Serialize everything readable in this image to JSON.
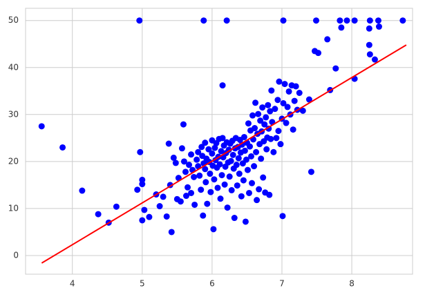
{
  "chart_data": {
    "type": "scatter",
    "xlim": [
      3.33,
      8.87
    ],
    "ylim": [
      -3.97,
      52.6
    ],
    "xticks": [
      4,
      5,
      6,
      7,
      8
    ],
    "yticks": [
      0,
      10,
      20,
      30,
      40,
      50
    ],
    "grid": true,
    "series": [
      {
        "kind": "scatter",
        "color": "#0000ff",
        "x": [
          3.56,
          3.86,
          4.14,
          4.37,
          4.52,
          4.63,
          4.96,
          4.93,
          4.97,
          5.0,
          5.0,
          5.0,
          5.03,
          5.1,
          5.88,
          6.21,
          7.02,
          7.49,
          7.83,
          7.93,
          8.04,
          8.26,
          8.38,
          8.73,
          7.85,
          8.25,
          8.25,
          8.39,
          8.26,
          8.33,
          8.04,
          7.77,
          7.65,
          7.47,
          7.52,
          7.69,
          7.42,
          7.39,
          5.59,
          6.15,
          5.2,
          5.25,
          5.3,
          5.35,
          5.38,
          5.4,
          5.42,
          5.45,
          5.48,
          5.5,
          5.52,
          5.55,
          5.57,
          5.6,
          5.62,
          5.63,
          5.65,
          5.67,
          5.7,
          5.7,
          5.72,
          5.74,
          5.75,
          5.78,
          5.8,
          5.8,
          5.82,
          5.84,
          5.85,
          5.86,
          5.87,
          5.88,
          5.9,
          5.9,
          5.91,
          5.92,
          5.93,
          5.95,
          5.96,
          5.97,
          5.98,
          6.0,
          6.0,
          6.01,
          6.02,
          6.03,
          6.04,
          6.05,
          6.06,
          6.07,
          6.08,
          6.09,
          6.1,
          6.11,
          6.12,
          6.13,
          6.14,
          6.15,
          6.16,
          6.17,
          6.18,
          6.19,
          6.2,
          6.21,
          6.22,
          6.23,
          6.24,
          6.25,
          6.26,
          6.27,
          6.28,
          6.29,
          6.3,
          6.31,
          6.32,
          6.33,
          6.34,
          6.35,
          6.36,
          6.37,
          6.38,
          6.39,
          6.4,
          6.41,
          6.42,
          6.43,
          6.44,
          6.45,
          6.46,
          6.47,
          6.48,
          6.49,
          6.5,
          6.51,
          6.52,
          6.53,
          6.54,
          6.55,
          6.56,
          6.57,
          6.58,
          6.59,
          6.6,
          6.61,
          6.62,
          6.63,
          6.64,
          6.65,
          6.66,
          6.67,
          6.68,
          6.69,
          6.7,
          6.71,
          6.72,
          6.73,
          6.74,
          6.75,
          6.76,
          6.77,
          6.78,
          6.79,
          6.8,
          6.81,
          6.82,
          6.83,
          6.84,
          6.85,
          6.86,
          6.88,
          6.9,
          6.92,
          6.94,
          6.95,
          6.96,
          6.98,
          7.0,
          7.01,
          7.02,
          7.04,
          7.06,
          7.08,
          7.1,
          7.12,
          7.14,
          7.16,
          7.18,
          7.2,
          7.22,
          7.25,
          7.3
        ],
        "values": [
          27.5,
          23,
          13.8,
          8.8,
          7,
          10.4,
          50,
          14,
          22,
          15.2,
          16.1,
          7.5,
          9.7,
          8.2,
          50,
          50,
          50,
          50,
          50,
          50,
          50,
          50,
          50,
          50,
          48.5,
          48.3,
          44.8,
          48.7,
          42.8,
          41.7,
          37.6,
          39.8,
          46,
          43.5,
          43.1,
          35.2,
          17.8,
          33.2,
          27.9,
          36.2,
          13.0,
          10.5,
          12.5,
          8.3,
          23.8,
          15.0,
          5.0,
          20.8,
          19.7,
          12.0,
          16.5,
          11.5,
          22.8,
          20.0,
          17.8,
          12.7,
          14.5,
          19.3,
          21.5,
          13.3,
          18.2,
          16.7,
          10.8,
          20.4,
          19.0,
          22.0,
          17.0,
          14.0,
          23.1,
          21.2,
          8.5,
          19.6,
          18.4,
          24.0,
          15.6,
          20.6,
          11.0,
          22.6,
          19.9,
          17.4,
          13.5,
          21.7,
          24.5,
          19.1,
          5.6,
          16.2,
          22.9,
          20.3,
          23.9,
          18.7,
          14.4,
          21.0,
          24.8,
          19.4,
          12.1,
          22.2,
          17.1,
          25.0,
          20.9,
          23.4,
          15.1,
          18.9,
          21.8,
          24.1,
          10.2,
          19.8,
          22.5,
          16.8,
          23.8,
          20.1,
          13.9,
          24.4,
          21.4,
          18.5,
          8.0,
          22.8,
          25.0,
          19.3,
          14.9,
          23.1,
          20.7,
          17.4,
          24.6,
          21.9,
          12.6,
          23.6,
          19.6,
          16.0,
          25.2,
          22.3,
          7.2,
          20.4,
          24.0,
          18.2,
          28.1,
          13.3,
          23.2,
          26.6,
          21.1,
          15.4,
          29.8,
          24.7,
          19.0,
          27.1,
          32.5,
          22.0,
          11.8,
          25.9,
          30.1,
          14.1,
          23.7,
          28.7,
          20.6,
          26.4,
          31.5,
          16.6,
          24.3,
          27.9,
          13.4,
          29.4,
          22.6,
          25.1,
          32.0,
          27.0,
          12.9,
          30.7,
          24.8,
          35.1,
          28.4,
          22.0,
          31.2,
          25.0,
          33.1,
          26.5,
          37.0,
          23.7,
          29.1,
          8.4,
          32.4,
          36.5,
          28.2,
          31.6,
          34.9,
          30.0,
          36.2,
          26.8,
          32.9,
          36.0,
          31.0,
          34.6,
          30.8
        ]
      },
      {
        "kind": "line",
        "color": "#ff0000",
        "x": [
          3.561,
          8.78
        ],
        "values": [
          -1.6,
          44.8
        ]
      }
    ]
  }
}
